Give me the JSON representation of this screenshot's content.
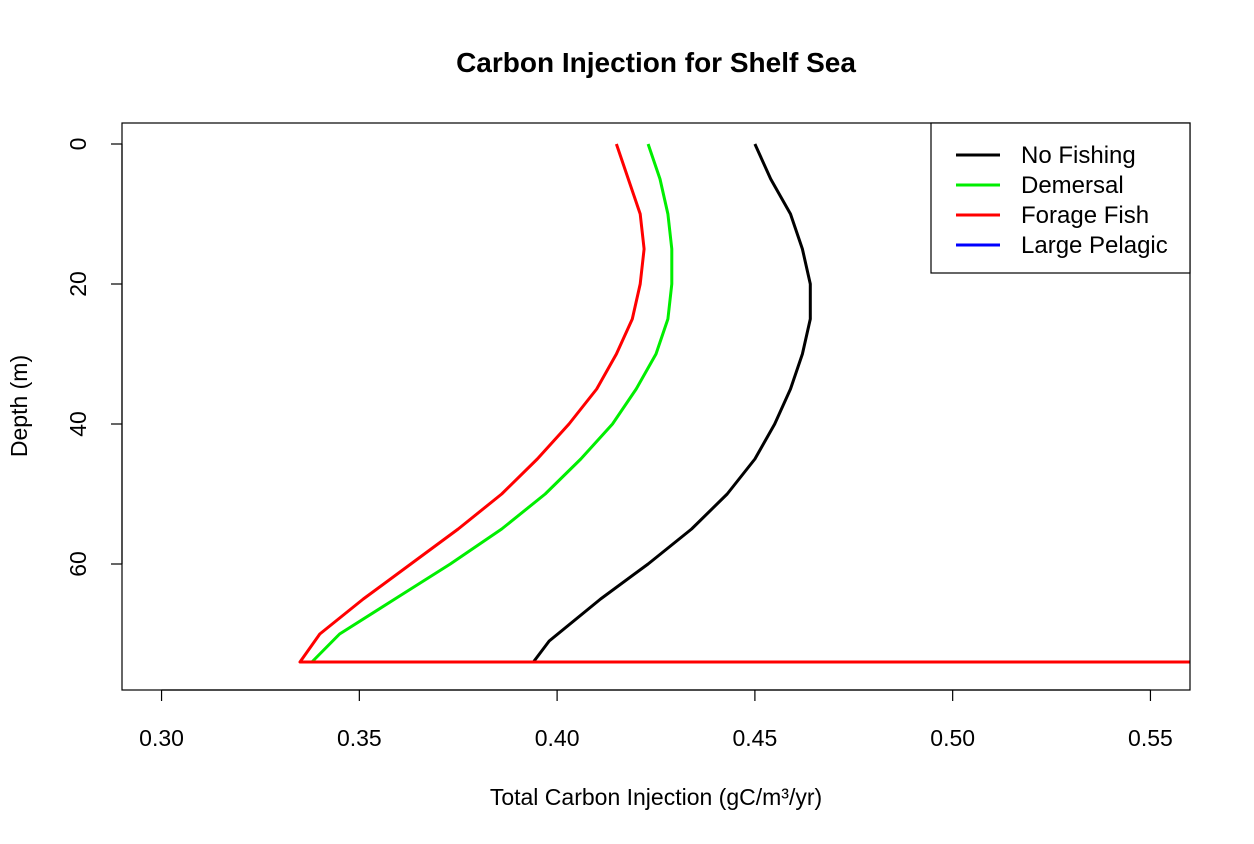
{
  "chart_data": {
    "type": "line",
    "title": "Carbon Injection for Shelf Sea",
    "xlabel": "Total Carbon Injection (gC/m³/yr)",
    "ylabel": "Depth (m)",
    "xlim": [
      0.29,
      0.56
    ],
    "ylim": [
      78,
      -3
    ],
    "x_ticks": [
      0.3,
      0.35,
      0.4,
      0.45,
      0.5,
      0.55
    ],
    "x_tick_labels": [
      "0.30",
      "0.35",
      "0.40",
      "0.45",
      "0.50",
      "0.55"
    ],
    "y_ticks": [
      0,
      20,
      40,
      60
    ],
    "y_tick_labels": [
      "0",
      "20",
      "40",
      "60"
    ],
    "y_reversed": true,
    "legend_position": "top-right",
    "series": [
      {
        "name": "No Fishing",
        "color": "#000000",
        "points": [
          [
            0.45,
            0
          ],
          [
            0.454,
            5
          ],
          [
            0.459,
            10
          ],
          [
            0.462,
            15
          ],
          [
            0.464,
            20
          ],
          [
            0.464,
            25
          ],
          [
            0.462,
            30
          ],
          [
            0.459,
            35
          ],
          [
            0.455,
            40
          ],
          [
            0.45,
            45
          ],
          [
            0.443,
            50
          ],
          [
            0.434,
            55
          ],
          [
            0.423,
            60
          ],
          [
            0.411,
            65
          ],
          [
            0.398,
            71
          ],
          [
            0.394,
            74
          ],
          [
            0.56,
            74
          ]
        ]
      },
      {
        "name": "Demersal",
        "color": "#00ee00",
        "points": [
          [
            0.423,
            0
          ],
          [
            0.426,
            5
          ],
          [
            0.428,
            10
          ],
          [
            0.429,
            15
          ],
          [
            0.429,
            20
          ],
          [
            0.428,
            25
          ],
          [
            0.425,
            30
          ],
          [
            0.42,
            35
          ],
          [
            0.414,
            40
          ],
          [
            0.406,
            45
          ],
          [
            0.397,
            50
          ],
          [
            0.386,
            55
          ],
          [
            0.373,
            60
          ],
          [
            0.359,
            65
          ],
          [
            0.345,
            70
          ],
          [
            0.338,
            74
          ],
          [
            0.56,
            74
          ]
        ]
      },
      {
        "name": "Forage Fish",
        "color": "#ff0000",
        "points": [
          [
            0.415,
            0
          ],
          [
            0.418,
            5
          ],
          [
            0.421,
            10
          ],
          [
            0.422,
            15
          ],
          [
            0.421,
            20
          ],
          [
            0.419,
            25
          ],
          [
            0.415,
            30
          ],
          [
            0.41,
            35
          ],
          [
            0.403,
            40
          ],
          [
            0.395,
            45
          ],
          [
            0.386,
            50
          ],
          [
            0.375,
            55
          ],
          [
            0.363,
            60
          ],
          [
            0.351,
            65
          ],
          [
            0.34,
            70
          ],
          [
            0.335,
            74
          ],
          [
            0.56,
            74
          ]
        ]
      },
      {
        "name": "Large Pelagic",
        "color": "#0000ff",
        "points": []
      }
    ]
  }
}
